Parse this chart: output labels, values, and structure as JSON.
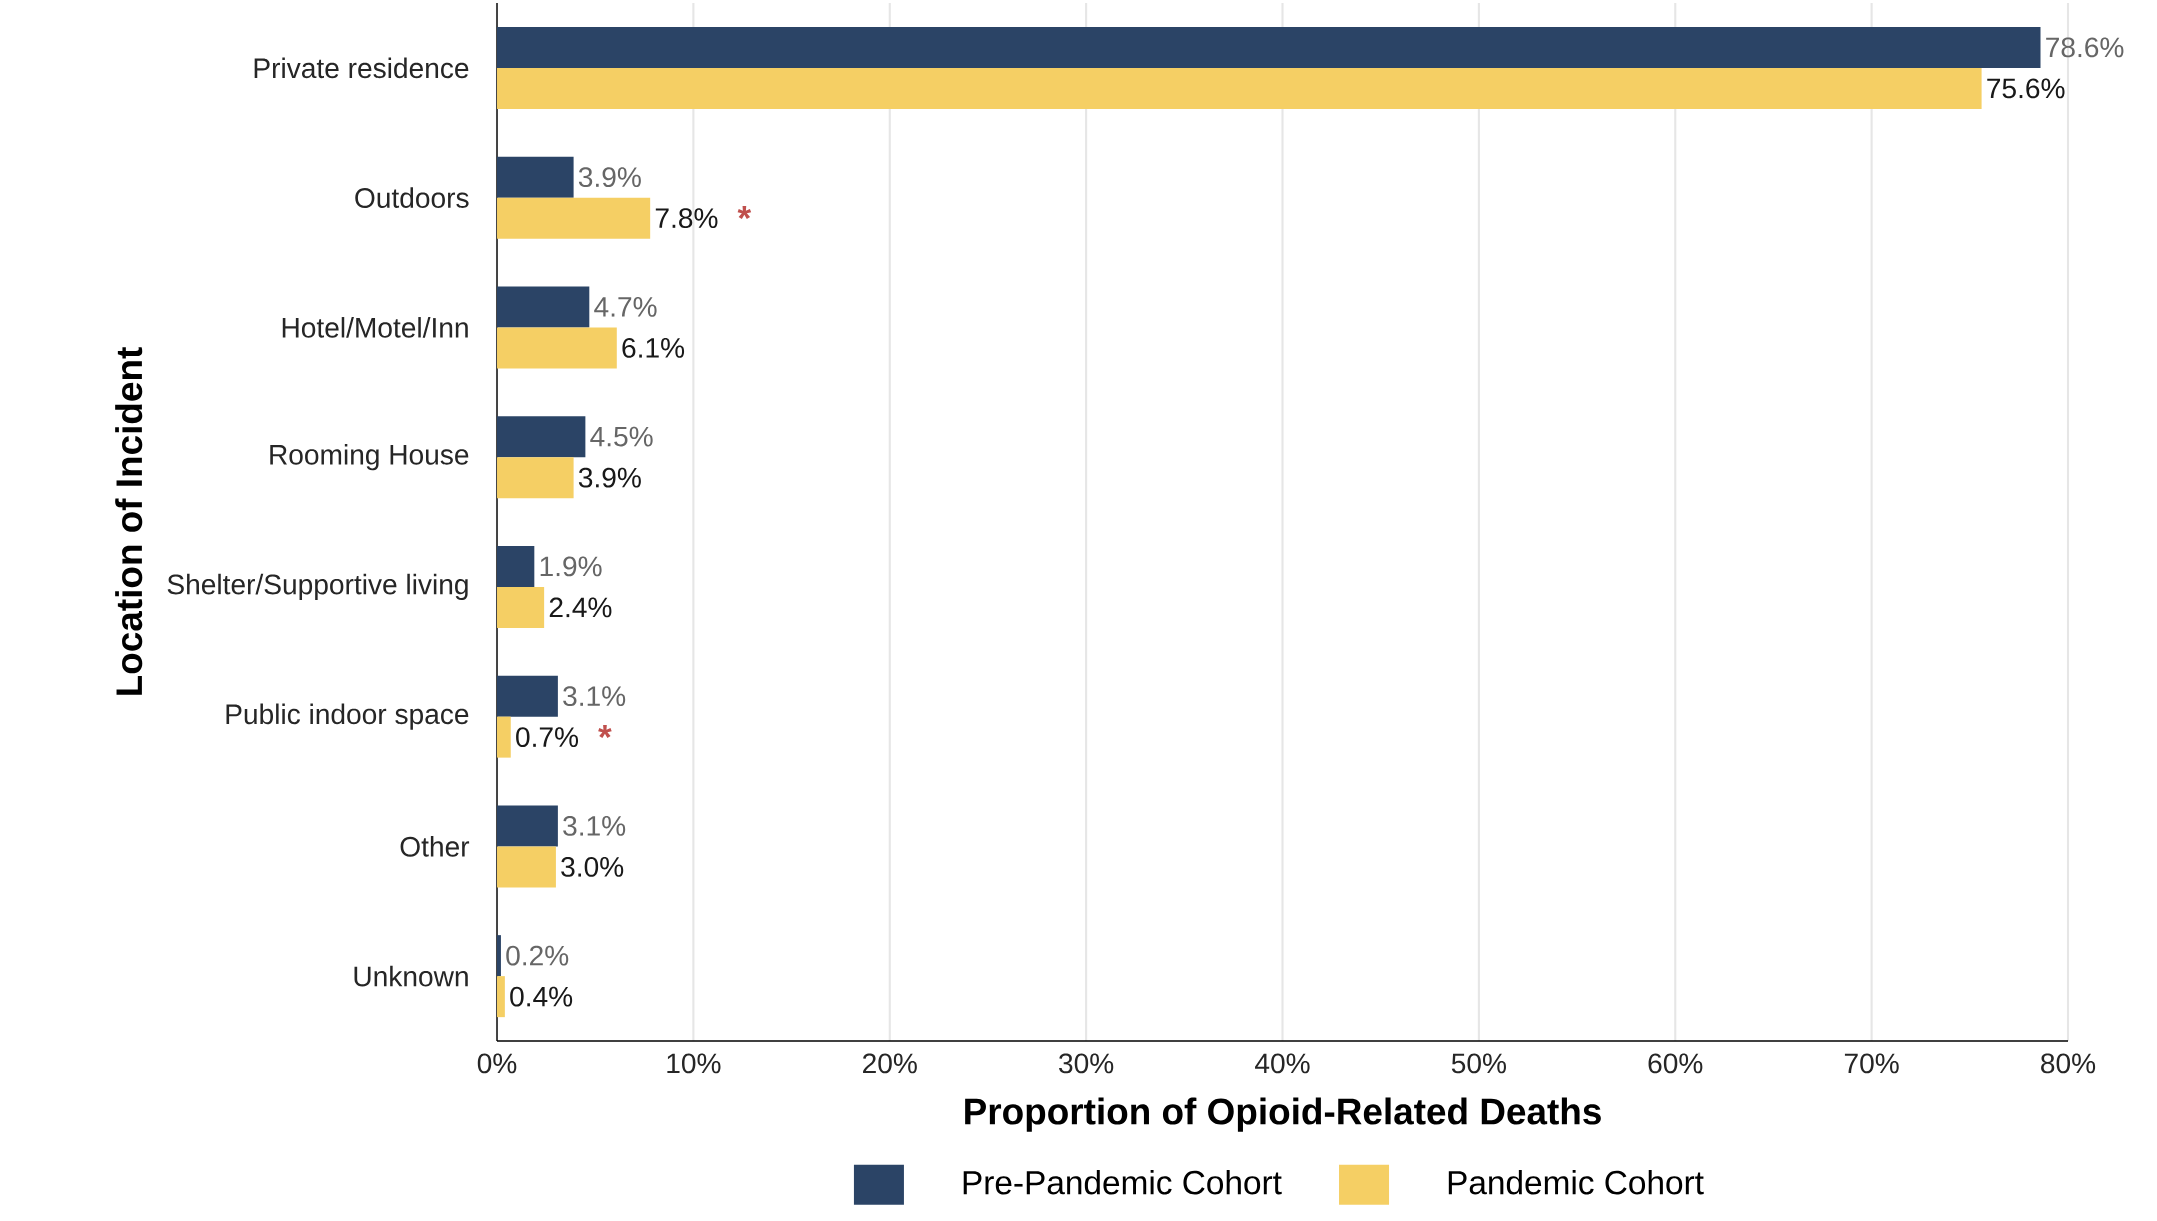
{
  "chart_data": {
    "type": "bar",
    "orientation": "horizontal",
    "xlabel": "Proportion of Opioid-Related Deaths",
    "ylabel": "Location of Incident",
    "categories": [
      "Private residence",
      "Outdoors",
      "Hotel/Motel/Inn",
      "Rooming House",
      "Shelter/Supportive living",
      "Public indoor space",
      "Other",
      "Unknown"
    ],
    "series": [
      {
        "name": "Pre-Pandemic Cohort",
        "color": "#2b4466",
        "values": [
          78.6,
          3.9,
          4.7,
          4.5,
          1.9,
          3.1,
          3.1,
          0.2
        ],
        "value_labels": [
          "78.6%",
          "3.9%",
          "4.7%",
          "4.5%",
          "1.9%",
          "3.1%",
          "3.1%",
          "0.2%"
        ]
      },
      {
        "name": "Pandemic Cohort",
        "color": "#f5cf64",
        "values": [
          75.6,
          7.8,
          6.1,
          3.9,
          2.4,
          0.7,
          3.0,
          0.4
        ],
        "value_labels": [
          "75.6%",
          "7.8%",
          "6.1%",
          "3.9%",
          "2.4%",
          "0.7%",
          "3.0%",
          "0.4%"
        ]
      }
    ],
    "xlim": [
      0,
      80
    ],
    "xticks": [
      {
        "value": 0,
        "label": "0%"
      },
      {
        "value": 10,
        "label": "10%"
      },
      {
        "value": 20,
        "label": "20%"
      },
      {
        "value": 30,
        "label": "30%"
      },
      {
        "value": 40,
        "label": "40%"
      },
      {
        "value": 50,
        "label": "50%"
      },
      {
        "value": 60,
        "label": "60%"
      },
      {
        "value": 70,
        "label": "70%"
      },
      {
        "value": 80,
        "label": "80%"
      }
    ],
    "grid": "x",
    "legend": "bottom",
    "annotations": [
      {
        "text": "*",
        "x": 7.8,
        "y": "Outdoors"
      },
      {
        "text": "*",
        "x": 0.7,
        "y": "Public indoor space"
      }
    ]
  }
}
